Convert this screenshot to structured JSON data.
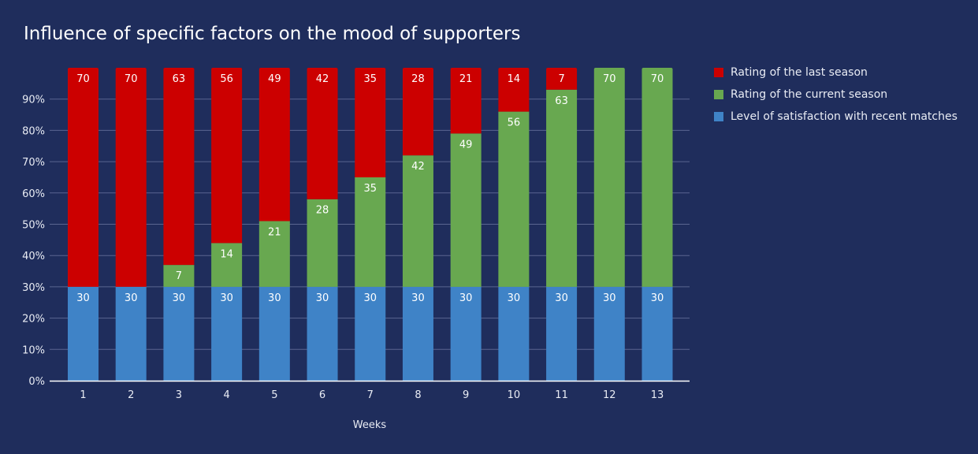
{
  "chart_data": {
    "type": "bar",
    "stacked": true,
    "normalized": true,
    "title": "Influence of specific factors on the mood of supporters",
    "xlabel": "Weeks",
    "ylabel": "",
    "ylim": [
      0,
      100
    ],
    "yticks": [
      "0%",
      "10%",
      "20%",
      "30%",
      "40%",
      "50%",
      "60%",
      "70%",
      "80%",
      "90%"
    ],
    "grid": true,
    "legend_position": "right",
    "categories": [
      "1",
      "2",
      "3",
      "4",
      "5",
      "6",
      "7",
      "8",
      "9",
      "10",
      "11",
      "12",
      "13"
    ],
    "series": [
      {
        "name": "Level of satisfaction with recent matches",
        "color": "#3f83c7",
        "values": [
          30,
          30,
          30,
          30,
          30,
          30,
          30,
          30,
          30,
          30,
          30,
          30,
          30
        ]
      },
      {
        "name": "Rating of the current season",
        "color": "#68a850",
        "values": [
          0,
          0,
          7,
          14,
          21,
          28,
          35,
          42,
          49,
          56,
          63,
          70,
          70
        ]
      },
      {
        "name": "Rating of the last season",
        "color": "#cc0000",
        "values": [
          70,
          70,
          63,
          56,
          49,
          42,
          35,
          28,
          21,
          14,
          7,
          0,
          0
        ]
      }
    ],
    "legend_order": [
      2,
      1,
      0
    ]
  },
  "colors": {
    "background": "#1f2d5c",
    "grid": "#5a6590",
    "axis": "#ffffff",
    "text": "#e9ecf4"
  }
}
